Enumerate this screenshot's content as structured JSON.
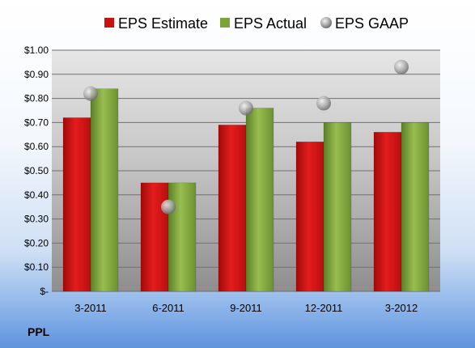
{
  "company_label": "PPL",
  "chart_data": {
    "type": "bar",
    "title": "",
    "xlabel": "",
    "ylabel": "",
    "categories": [
      "3-2011",
      "6-2011",
      "9-2011",
      "12-2011",
      "3-2012"
    ],
    "series": [
      {
        "name": "EPS Estimate",
        "kind": "bar",
        "color": "#cc1111",
        "values": [
          0.72,
          0.45,
          0.69,
          0.62,
          0.66
        ]
      },
      {
        "name": "EPS Actual",
        "kind": "bar",
        "color": "#7da23a",
        "values": [
          0.84,
          0.45,
          0.76,
          0.7,
          0.7
        ]
      },
      {
        "name": "EPS GAAP",
        "kind": "marker",
        "color": "#9a9a9a",
        "values": [
          0.82,
          0.35,
          0.76,
          0.78,
          0.93
        ]
      }
    ],
    "ylim": [
      0,
      1.0
    ],
    "y_ticks": [
      0,
      0.1,
      0.2,
      0.3,
      0.4,
      0.5,
      0.6,
      0.7,
      0.8,
      0.9,
      1.0
    ],
    "y_tick_labels": [
      "$-",
      "$0.10",
      "$0.20",
      "$0.30",
      "$0.40",
      "$0.50",
      "$0.60",
      "$0.70",
      "$0.80",
      "$0.90",
      "$1.00"
    ],
    "grid": true,
    "legend": "top"
  }
}
